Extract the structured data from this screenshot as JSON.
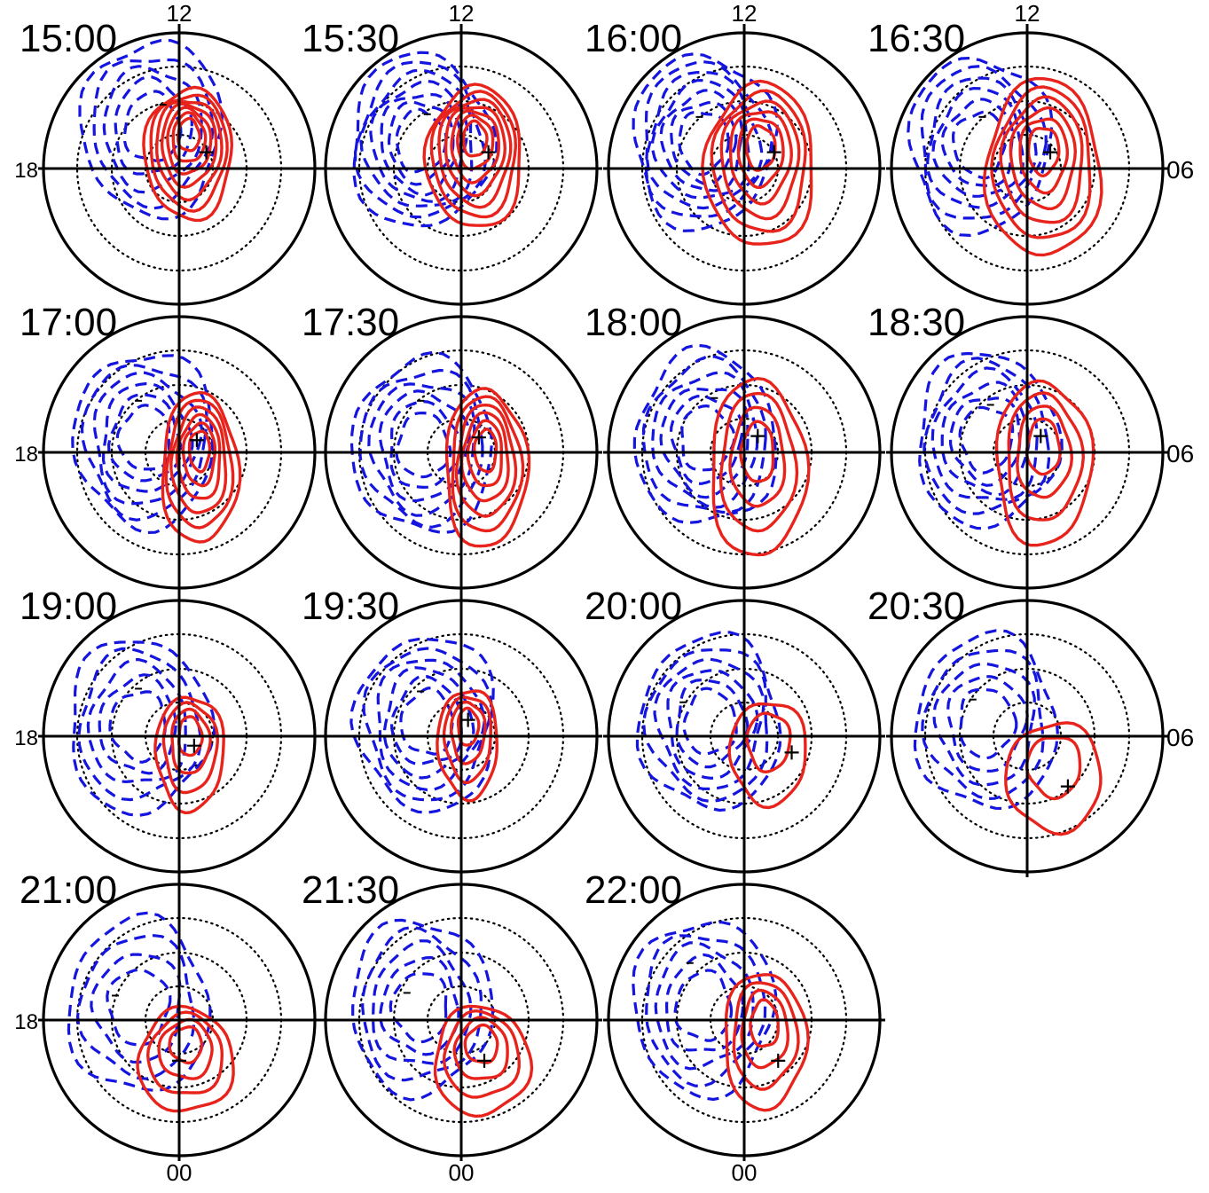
{
  "figure": {
    "colors": {
      "positive": "#e8231c",
      "negative": "#1515e0",
      "frame": "#000000"
    },
    "panels": [
      {
        "time": "15:00",
        "top_label": "12",
        "left_label": "18",
        "right_label": "",
        "bottom_label": "",
        "pos_center": [
          0.07,
          -0.11
        ],
        "pos_spread": [
          0.32,
          0.48
        ],
        "pos_count": 7,
        "neg_center": [
          -0.2,
          -0.3
        ],
        "neg_count": 5,
        "pos_marker": [
          0.2,
          -0.12
        ],
        "neg_marker": [
          -0.12,
          -0.47
        ]
      },
      {
        "time": "15:30",
        "top_label": "12",
        "left_label": "",
        "right_label": "",
        "bottom_label": "",
        "pos_center": [
          0.1,
          -0.08
        ],
        "pos_spread": [
          0.35,
          0.52
        ],
        "pos_count": 7,
        "neg_center": [
          -0.3,
          -0.2
        ],
        "neg_count": 7,
        "pos_marker": [
          0.2,
          -0.12
        ],
        "neg_marker": [
          -0.25,
          -0.4
        ]
      },
      {
        "time": "16:00",
        "top_label": "12",
        "left_label": "",
        "right_label": "",
        "bottom_label": "",
        "pos_center": [
          0.12,
          -0.02
        ],
        "pos_spread": [
          0.4,
          0.6
        ],
        "pos_count": 6,
        "neg_center": [
          -0.3,
          -0.2
        ],
        "neg_count": 7,
        "pos_marker": [
          0.22,
          -0.12
        ],
        "neg_marker": [
          -0.33,
          -0.38
        ]
      },
      {
        "time": "16:30",
        "top_label": "12",
        "left_label": "",
        "right_label": "06",
        "bottom_label": "",
        "pos_center": [
          0.12,
          0.0
        ],
        "pos_spread": [
          0.42,
          0.65
        ],
        "pos_count": 6,
        "neg_center": [
          -0.35,
          -0.18
        ],
        "neg_count": 6,
        "pos_marker": [
          0.17,
          -0.12
        ],
        "neg_marker": [
          -0.33,
          -0.38
        ]
      },
      {
        "time": "17:00",
        "top_label": "",
        "left_label": "18",
        "right_label": "",
        "bottom_label": "",
        "pos_center": [
          0.15,
          0.12
        ],
        "pos_spread": [
          0.28,
          0.55
        ],
        "pos_count": 6,
        "neg_center": [
          -0.25,
          -0.1
        ],
        "neg_count": 6,
        "pos_marker": [
          0.13,
          -0.09
        ],
        "neg_marker": [
          -0.3,
          -0.38
        ]
      },
      {
        "time": "17:30",
        "top_label": "",
        "left_label": "",
        "right_label": "",
        "bottom_label": "",
        "pos_center": [
          0.18,
          0.12
        ],
        "pos_spread": [
          0.3,
          0.58
        ],
        "pos_count": 6,
        "neg_center": [
          -0.28,
          -0.05
        ],
        "neg_count": 6,
        "pos_marker": [
          0.13,
          -0.11
        ],
        "neg_marker": [
          -0.3,
          -0.38
        ]
      },
      {
        "time": "18:00",
        "top_label": "",
        "left_label": "",
        "right_label": "",
        "bottom_label": "",
        "pos_center": [
          0.1,
          0.12
        ],
        "pos_spread": [
          0.35,
          0.65
        ],
        "pos_count": 4,
        "neg_center": [
          -0.28,
          -0.1
        ],
        "neg_count": 6,
        "pos_marker": [
          0.1,
          -0.12
        ],
        "neg_marker": [
          -0.22,
          -0.4
        ]
      },
      {
        "time": "18:30",
        "top_label": "",
        "left_label": "",
        "right_label": "06",
        "bottom_label": "",
        "pos_center": [
          0.12,
          0.08
        ],
        "pos_spread": [
          0.35,
          0.6
        ],
        "pos_count": 4,
        "neg_center": [
          -0.3,
          -0.1
        ],
        "neg_count": 6,
        "pos_marker": [
          0.1,
          -0.12
        ],
        "neg_marker": [
          -0.27,
          -0.35
        ]
      },
      {
        "time": "19:00",
        "top_label": "",
        "left_label": "18",
        "right_label": "",
        "bottom_label": "",
        "pos_center": [
          0.08,
          0.12
        ],
        "pos_spread": [
          0.25,
          0.42
        ],
        "pos_count": 4,
        "neg_center": [
          -0.3,
          -0.08
        ],
        "neg_count": 5,
        "pos_marker": [
          0.11,
          0.07
        ],
        "neg_marker": [
          -0.3,
          -0.35
        ]
      },
      {
        "time": "19:30",
        "top_label": "",
        "left_label": "",
        "right_label": "",
        "bottom_label": "",
        "pos_center": [
          0.05,
          0.05
        ],
        "pos_spread": [
          0.22,
          0.4
        ],
        "pos_count": 4,
        "neg_center": [
          -0.25,
          -0.1
        ],
        "neg_count": 6,
        "pos_marker": [
          0.05,
          -0.12
        ],
        "neg_marker": [
          -0.3,
          -0.33
        ]
      },
      {
        "time": "20:00",
        "top_label": "",
        "left_label": "",
        "right_label": "",
        "bottom_label": "",
        "pos_center": [
          0.18,
          0.12
        ],
        "pos_spread": [
          0.28,
          0.38
        ],
        "pos_count": 2,
        "neg_center": [
          -0.25,
          -0.1
        ],
        "neg_count": 6,
        "pos_marker": [
          0.35,
          0.12
        ],
        "neg_marker": [
          -0.45,
          -0.25
        ]
      },
      {
        "time": "20:30",
        "top_label": "",
        "left_label": "",
        "right_label": "06",
        "bottom_label": "",
        "pos_center": [
          0.2,
          0.3
        ],
        "pos_spread": [
          0.35,
          0.4
        ],
        "pos_count": 2,
        "neg_center": [
          -0.3,
          -0.1
        ],
        "neg_count": 5,
        "pos_marker": [
          0.3,
          0.37
        ],
        "neg_marker": [
          -0.4,
          -0.27
        ]
      },
      {
        "time": "21:00",
        "top_label": "",
        "left_label": "18",
        "right_label": "",
        "bottom_label": "00",
        "pos_center": [
          0.05,
          0.3
        ],
        "pos_spread": [
          0.35,
          0.38
        ],
        "pos_count": 4,
        "neg_center": [
          -0.3,
          -0.1
        ],
        "neg_count": 4,
        "pos_marker": [
          0.0,
          0.3
        ],
        "neg_marker": [
          -0.47,
          -0.18
        ]
      },
      {
        "time": "21:30",
        "top_label": "",
        "left_label": "",
        "right_label": "",
        "bottom_label": "00",
        "pos_center": [
          0.15,
          0.3
        ],
        "pos_spread": [
          0.35,
          0.4
        ],
        "pos_count": 4,
        "neg_center": [
          -0.3,
          -0.1
        ],
        "neg_count": 5,
        "pos_marker": [
          0.17,
          0.3
        ],
        "neg_marker": [
          -0.4,
          -0.2
        ]
      },
      {
        "time": "22:00",
        "top_label": "",
        "left_label": "",
        "right_label": "",
        "bottom_label": "00",
        "pos_center": [
          0.15,
          0.15
        ],
        "pos_spread": [
          0.3,
          0.5
        ],
        "pos_count": 4,
        "neg_center": [
          -0.3,
          -0.1
        ],
        "neg_count": 5,
        "pos_marker": [
          0.25,
          0.3
        ],
        "neg_marker": [
          -0.4,
          -0.42
        ]
      }
    ]
  }
}
